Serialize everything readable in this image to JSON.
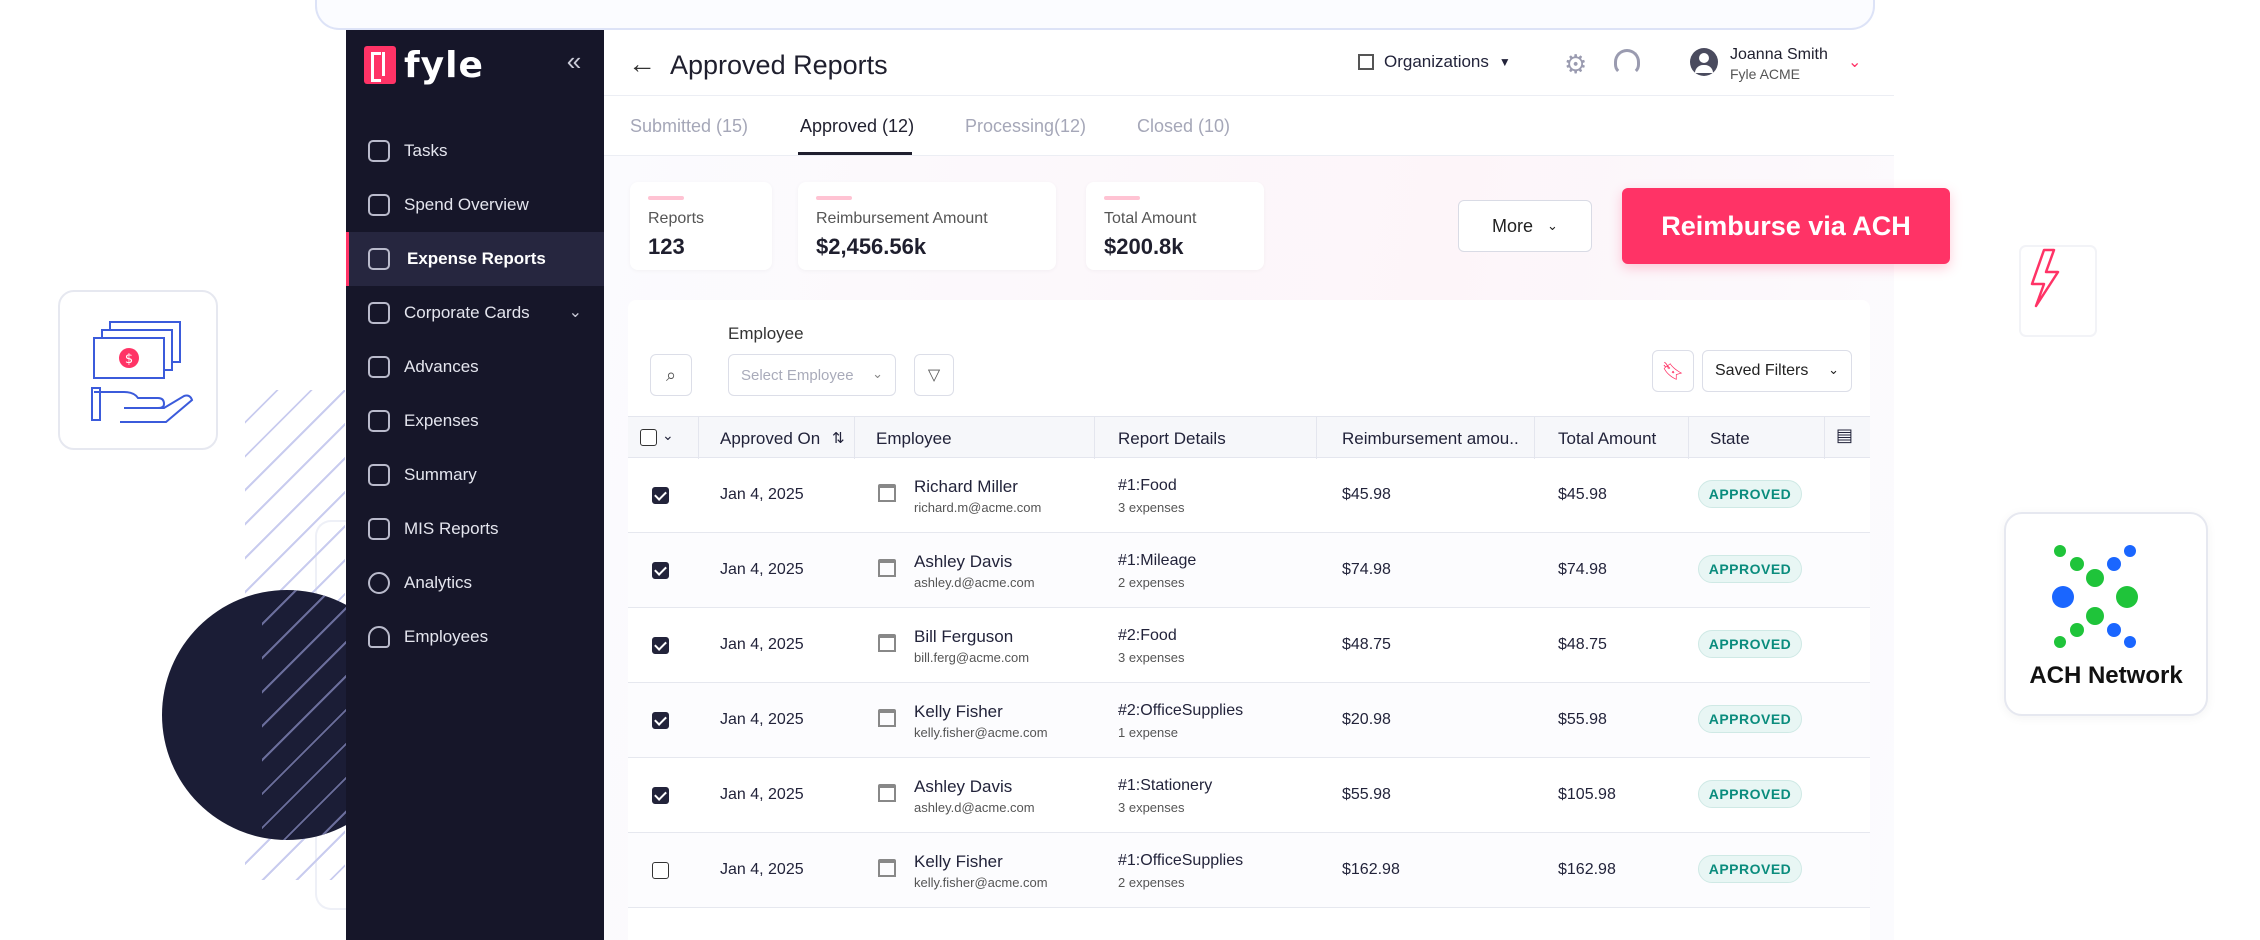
{
  "app": {
    "brand": "fyle"
  },
  "sidebar": {
    "items": [
      {
        "label": "Tasks",
        "icon": "clipboard-icon"
      },
      {
        "label": "Spend Overview",
        "icon": "grid-icon"
      },
      {
        "label": "Expense Reports",
        "icon": "folder-icon",
        "active": true
      },
      {
        "label": "Corporate Cards",
        "icon": "card-icon",
        "has_children": true
      },
      {
        "label": "Advances",
        "icon": "wallet-icon"
      },
      {
        "label": "Expenses",
        "icon": "receipt-icon"
      },
      {
        "label": "Summary",
        "icon": "document-icon"
      },
      {
        "label": "MIS Reports",
        "icon": "report-icon"
      },
      {
        "label": "Analytics",
        "icon": "pie-chart-icon"
      },
      {
        "label": "Employees",
        "icon": "people-icon"
      }
    ]
  },
  "header": {
    "title": "Approved Reports",
    "org_label": "Organizations",
    "user_name": "Joanna Smith",
    "user_org": "Fyle ACME"
  },
  "tabs": [
    {
      "label": "Submitted (15)"
    },
    {
      "label": "Approved (12)",
      "active": true
    },
    {
      "label": "Processing(12)"
    },
    {
      "label": "Closed (10)"
    }
  ],
  "stats": [
    {
      "label": "Reports",
      "value": "123"
    },
    {
      "label": "Reimbursement Amount",
      "value": "$2,456.56k"
    },
    {
      "label": "Total Amount",
      "value": "$200.8k"
    }
  ],
  "actions": {
    "more": "More",
    "reimburse": "Reimburse via ACH"
  },
  "filters": {
    "employee_label": "Employee",
    "employee_placeholder": "Select Employee",
    "saved_filters": "Saved Filters"
  },
  "table": {
    "columns": [
      "Approved On",
      "Employee",
      "Report Details",
      "Reimbursement amou..",
      "Total  Amount",
      "State"
    ],
    "rows": [
      {
        "checked": true,
        "date": "Jan 4, 2025",
        "name": "Richard Miller",
        "email": "richard.m@acme.com",
        "report": "#1:Food",
        "count": "3 expenses",
        "reimb": "$45.98",
        "total": "$45.98",
        "state": "APPROVED"
      },
      {
        "checked": true,
        "date": "Jan 4, 2025",
        "name": "Ashley Davis",
        "email": "ashley.d@acme.com",
        "report": "#1:Mileage",
        "count": "2 expenses",
        "reimb": "$74.98",
        "total": "$74.98",
        "state": "APPROVED"
      },
      {
        "checked": true,
        "date": "Jan 4, 2025",
        "name": "Bill Ferguson",
        "email": "bill.ferg@acme.com",
        "report": "#2:Food",
        "count": "3 expenses",
        "reimb": "$48.75",
        "total": "$48.75",
        "state": "APPROVED"
      },
      {
        "checked": true,
        "date": "Jan 4, 2025",
        "name": "Kelly Fisher",
        "email": "kelly.fisher@acme.com",
        "report": "#2:OfficeSupplies",
        "count": "1 expense",
        "reimb": "$20.98",
        "total": "$55.98",
        "state": "APPROVED"
      },
      {
        "checked": true,
        "date": "Jan 4, 2025",
        "name": "Ashley Davis",
        "email": "ashley.d@acme.com",
        "report": "#1:Stationery",
        "count": "3 expenses",
        "reimb": "$55.98",
        "total": "$105.98",
        "state": "APPROVED"
      },
      {
        "checked": false,
        "date": "Jan 4, 2025",
        "name": "Kelly Fisher",
        "email": "kelly.fisher@acme.com",
        "report": "#1:OfficeSupplies",
        "count": "2 expenses",
        "reimb": "$162.98",
        "total": "$162.98",
        "state": "APPROVED"
      }
    ]
  },
  "ach": {
    "label": "ACH Network"
  },
  "colors": {
    "brand": "#ff3366",
    "sidebar": "#161629",
    "approved": "#0a8c7d"
  }
}
